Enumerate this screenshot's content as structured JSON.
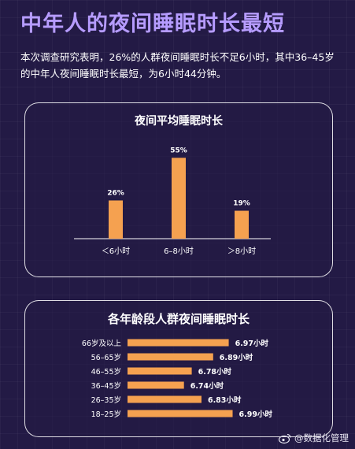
{
  "title": "中年人的夜间睡眠时长最短",
  "intro": "本次调查研究表明，26%的人群夜间睡眠时长不足6小时，其中36–45岁的中年人夜间睡眠时长最短，为6小时44分钟。",
  "watermark": "@数据化管理",
  "colors": {
    "background": "#231a45",
    "title": "#b69cff",
    "bar": "#f5a150",
    "card_border": "#ffffff"
  },
  "chart_data": [
    {
      "type": "bar",
      "title": "夜间平均睡眠时长",
      "categories": [
        "＜6小时",
        "6–8小时",
        "＞8小时"
      ],
      "values": [
        26,
        55,
        19
      ],
      "value_labels": [
        "26%",
        "55%",
        "19%"
      ],
      "ylim": [
        0,
        60
      ],
      "grid": false
    },
    {
      "type": "bar",
      "orientation": "horizontal",
      "title": "各年龄段人群夜间睡眠时长",
      "categories": [
        "66岁及以上",
        "56–65岁",
        "46–55岁",
        "36–45岁",
        "26–35岁",
        "18–25岁"
      ],
      "values": [
        6.97,
        6.89,
        6.78,
        6.74,
        6.83,
        6.99
      ],
      "value_labels": [
        "6.97小时",
        "6.89小时",
        "6.78小时",
        "6.74小时",
        "6.83小时",
        "6.99小时"
      ],
      "xlim": [
        6.45,
        7.0
      ],
      "grid": false
    }
  ]
}
